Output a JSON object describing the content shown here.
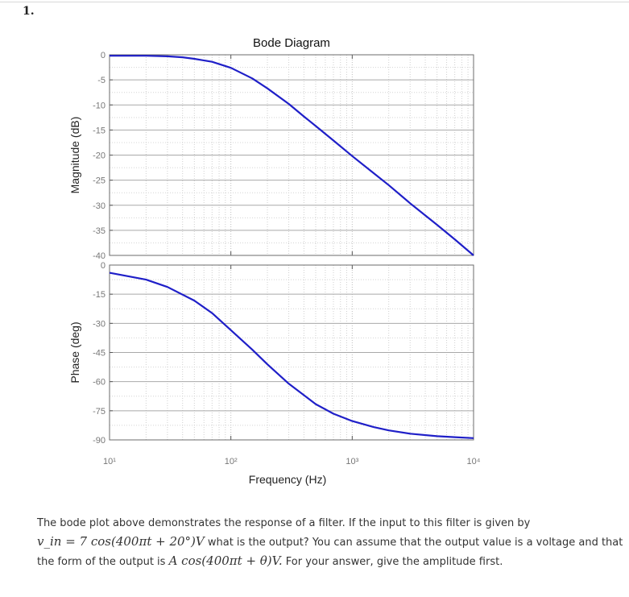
{
  "question": {
    "number": "1.",
    "line1": "The bode plot above demonstrates the response of a filter.  If the input to this filter is given by",
    "line2_math": "v_in = 7 cos(400πt + 20°)V",
    "line2_text": " what is the output? You can assume that the output value is a voltage and that",
    "line3_text_a": "the form of the output is ",
    "line3_math": "A cos(400πt + θ)V.",
    "line3_text_b": " For your answer, give the amplitude first."
  },
  "chart_data": [
    {
      "type": "line",
      "title": "Bode Diagram",
      "ylabel": "Magnitude (dB)",
      "xlabel": "",
      "xscale": "log",
      "xlim": [
        10,
        10000
      ],
      "ylim": [
        -40,
        0
      ],
      "yticks": [
        0,
        -5,
        -10,
        -15,
        -20,
        -25,
        -30,
        -35,
        -40
      ],
      "grid": true,
      "color": "#1f1fc8",
      "x": [
        10,
        20,
        30,
        40,
        50,
        70,
        100,
        150,
        200,
        300,
        400,
        500,
        700,
        1000,
        1500,
        2000,
        3000,
        5000,
        7000,
        10000
      ],
      "y": [
        -0.2,
        -0.2,
        -0.3,
        -0.5,
        -0.8,
        -1.4,
        -2.6,
        -4.7,
        -6.7,
        -9.8,
        -12.3,
        -14.2,
        -17.1,
        -20.2,
        -23.6,
        -26.0,
        -29.6,
        -33.9,
        -36.8,
        -40.0
      ]
    },
    {
      "type": "line",
      "title": "",
      "ylabel": "Phase (deg)",
      "xlabel": "Frequency  (Hz)",
      "xscale": "log",
      "xlim": [
        10,
        10000
      ],
      "ylim": [
        -90,
        0
      ],
      "yticks": [
        0,
        -15,
        -30,
        -45,
        -60,
        -75,
        -90
      ],
      "xticks": [
        "10¹",
        "10²",
        "10³",
        "10⁴"
      ],
      "grid": true,
      "color": "#1f1fc8",
      "x": [
        10,
        20,
        30,
        50,
        70,
        100,
        150,
        200,
        300,
        500,
        700,
        1000,
        1500,
        2000,
        3000,
        5000,
        7000,
        10000
      ],
      "y": [
        -4,
        -7.5,
        -11.3,
        -18.3,
        -24.7,
        -33.5,
        -43.5,
        -51.1,
        -61.1,
        -71.6,
        -76.5,
        -80.3,
        -83.4,
        -85.1,
        -86.8,
        -88.1,
        -88.6,
        -89.1
      ]
    }
  ]
}
